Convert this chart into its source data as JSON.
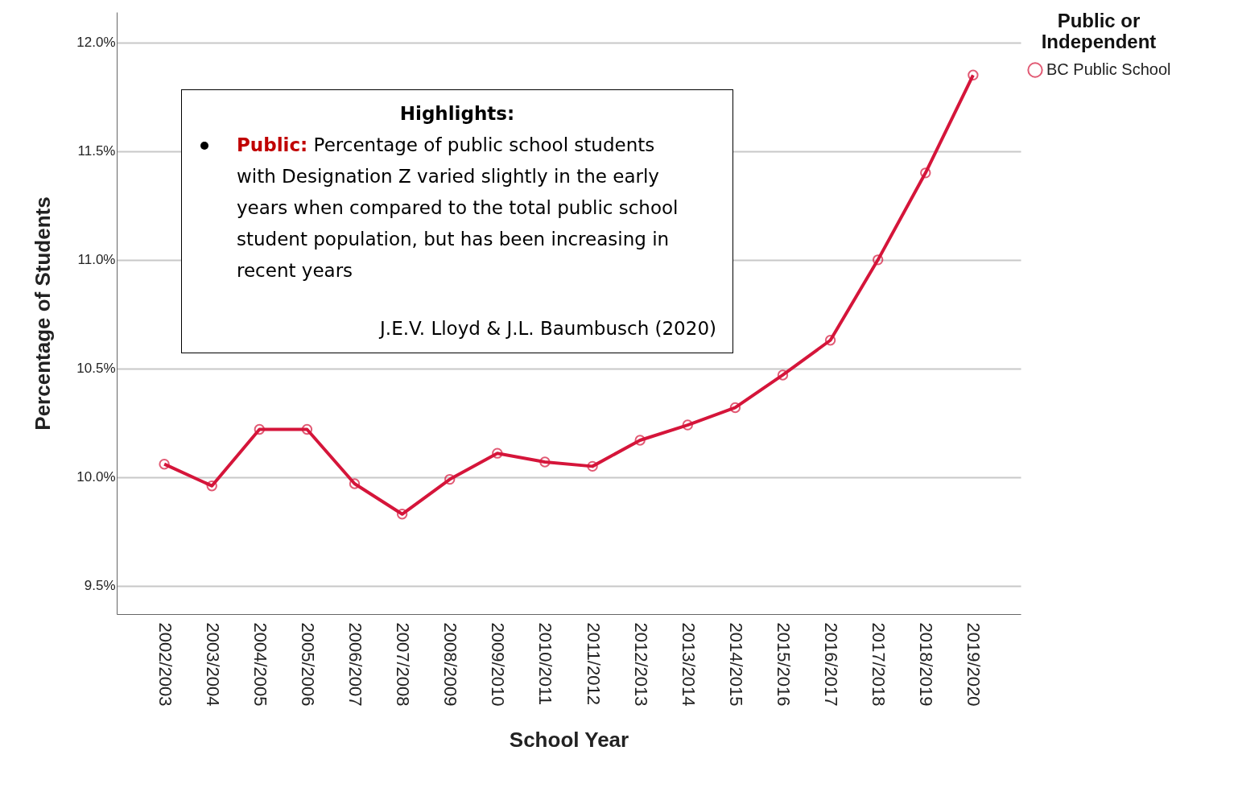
{
  "chart_data": {
    "type": "line",
    "categories": [
      "2002/2003",
      "2003/2004",
      "2004/2005",
      "2005/2006",
      "2006/2007",
      "2007/2008",
      "2008/2009",
      "2009/2010",
      "2010/2011",
      "2011/2012",
      "2012/2013",
      "2013/2014",
      "2014/2015",
      "2015/2016",
      "2016/2017",
      "2017/2018",
      "2018/2019",
      "2019/2020"
    ],
    "series": [
      {
        "name": "BC Public School",
        "color": "#d5153a",
        "values": [
          10.06,
          9.96,
          10.22,
          10.22,
          9.97,
          9.83,
          9.99,
          10.11,
          10.07,
          10.05,
          10.17,
          10.24,
          10.32,
          10.47,
          10.63,
          11.0,
          11.4,
          11.85
        ]
      }
    ],
    "ylim": [
      9.37,
      12.14
    ],
    "yticks": [
      {
        "value": 9.5,
        "label": "9.5%"
      },
      {
        "value": 10.0,
        "label": "10.0%"
      },
      {
        "value": 10.5,
        "label": "10.5%"
      },
      {
        "value": 11.0,
        "label": "11.0%"
      },
      {
        "value": 11.5,
        "label": "11.5%"
      },
      {
        "value": 12.0,
        "label": "12.0%"
      }
    ],
    "xlabel": "School Year",
    "ylabel": "Percentage of Students",
    "legend_title": "Public or Independent",
    "grid": "y",
    "legend": "right",
    "marker": "circle",
    "line_style": "solid",
    "annotations": [
      "Highlights:",
      "Public:",
      "Percentage of public school students with Designation Z varied slightly in the early years when compared to the total public school student population, but has been increasing in recent years",
      "J.E.V. Lloyd & J.L. Baumbusch (2020)"
    ]
  }
}
